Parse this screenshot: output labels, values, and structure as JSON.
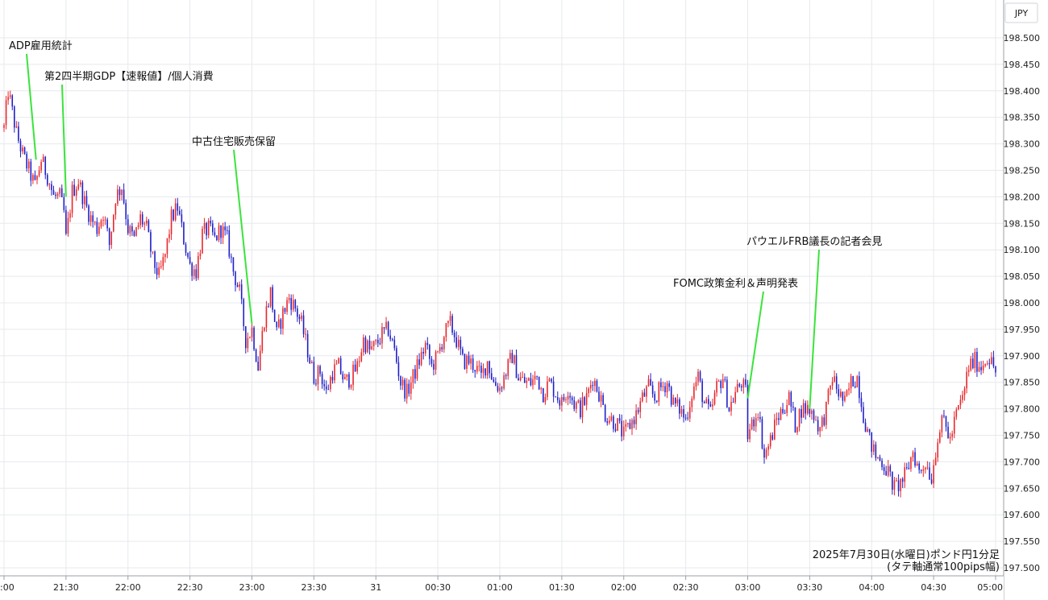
{
  "chart_data": {
    "type": "candlestick",
    "currency_label": "JPY",
    "note_lines": [
      "2025年7月30日(水曜日)ポンド円1分足",
      "(タテ軸通常100pips幅)"
    ],
    "ylim": [
      197.5,
      198.5
    ],
    "y_ticks": [
      "198.500",
      "198.450",
      "198.400",
      "198.350",
      "198.300",
      "198.250",
      "198.200",
      "198.150",
      "198.100",
      "198.050",
      "198.000",
      "197.950",
      "197.900",
      "197.850",
      "197.800",
      "197.750",
      "197.700",
      "197.650",
      "197.600",
      "197.550",
      "197.500"
    ],
    "x_ticks": [
      {
        "t": 0,
        "label": ":00"
      },
      {
        "t": 30,
        "label": "21:30"
      },
      {
        "t": 60,
        "label": "22:00"
      },
      {
        "t": 90,
        "label": "22:30"
      },
      {
        "t": 120,
        "label": "23:00"
      },
      {
        "t": 150,
        "label": "23:30"
      },
      {
        "t": 180,
        "label": "31"
      },
      {
        "t": 210,
        "label": "00:30"
      },
      {
        "t": 240,
        "label": "01:00"
      },
      {
        "t": 270,
        "label": "01:30"
      },
      {
        "t": 300,
        "label": "02:00"
      },
      {
        "t": 330,
        "label": "02:30"
      },
      {
        "t": 360,
        "label": "03:00"
      },
      {
        "t": 390,
        "label": "03:30"
      },
      {
        "t": 420,
        "label": "04:00"
      },
      {
        "t": 450,
        "label": "04:30"
      },
      {
        "t": 480,
        "label": "05:00"
      }
    ],
    "price_path": [
      [
        0,
        198.33
      ],
      [
        2,
        198.4
      ],
      [
        4,
        198.36
      ],
      [
        6,
        198.32
      ],
      [
        9,
        198.28
      ],
      [
        12,
        198.25
      ],
      [
        15,
        198.22
      ],
      [
        18,
        198.27
      ],
      [
        21,
        198.24
      ],
      [
        24,
        198.2
      ],
      [
        27,
        198.2
      ],
      [
        29,
        198.17
      ],
      [
        30,
        198.12
      ],
      [
        33,
        198.21
      ],
      [
        36,
        198.23
      ],
      [
        39,
        198.19
      ],
      [
        42,
        198.16
      ],
      [
        45,
        198.14
      ],
      [
        48,
        198.17
      ],
      [
        51,
        198.11
      ],
      [
        54,
        198.2
      ],
      [
        57,
        198.22
      ],
      [
        60,
        198.14
      ],
      [
        63,
        198.12
      ],
      [
        66,
        198.16
      ],
      [
        69,
        198.14
      ],
      [
        72,
        198.08
      ],
      [
        75,
        198.05
      ],
      [
        78,
        198.09
      ],
      [
        81,
        198.16
      ],
      [
        84,
        198.18
      ],
      [
        87,
        198.12
      ],
      [
        90,
        198.07
      ],
      [
        93,
        198.06
      ],
      [
        96,
        198.13
      ],
      [
        99,
        198.14
      ],
      [
        102,
        198.12
      ],
      [
        105,
        198.14
      ],
      [
        108,
        198.12
      ],
      [
        111,
        198.06
      ],
      [
        114,
        198.02
      ],
      [
        117,
        197.93
      ],
      [
        120,
        197.95
      ],
      [
        123,
        197.88
      ],
      [
        126,
        197.97
      ],
      [
        129,
        198.02
      ],
      [
        132,
        197.94
      ],
      [
        135,
        197.98
      ],
      [
        138,
        198.01
      ],
      [
        141,
        197.99
      ],
      [
        144,
        197.96
      ],
      [
        147,
        197.91
      ],
      [
        150,
        197.86
      ],
      [
        153,
        197.87
      ],
      [
        156,
        197.83
      ],
      [
        159,
        197.87
      ],
      [
        162,
        197.88
      ],
      [
        165,
        197.85
      ],
      [
        168,
        197.86
      ],
      [
        171,
        197.88
      ],
      [
        174,
        197.93
      ],
      [
        177,
        197.91
      ],
      [
        180,
        197.92
      ],
      [
        183,
        197.94
      ],
      [
        186,
        197.95
      ],
      [
        189,
        197.91
      ],
      [
        192,
        197.85
      ],
      [
        195,
        197.83
      ],
      [
        198,
        197.86
      ],
      [
        201,
        197.89
      ],
      [
        204,
        197.92
      ],
      [
        207,
        197.88
      ],
      [
        210,
        197.9
      ],
      [
        213,
        197.94
      ],
      [
        216,
        197.96
      ],
      [
        219,
        197.93
      ],
      [
        222,
        197.89
      ],
      [
        225,
        197.89
      ],
      [
        228,
        197.88
      ],
      [
        231,
        197.86
      ],
      [
        234,
        197.89
      ],
      [
        237,
        197.85
      ],
      [
        240,
        197.84
      ],
      [
        243,
        197.87
      ],
      [
        246,
        197.9
      ],
      [
        249,
        197.86
      ],
      [
        252,
        197.85
      ],
      [
        255,
        197.85
      ],
      [
        258,
        197.86
      ],
      [
        261,
        197.83
      ],
      [
        264,
        197.85
      ],
      [
        267,
        197.83
      ],
      [
        270,
        197.81
      ],
      [
        273,
        197.84
      ],
      [
        276,
        197.81
      ],
      [
        279,
        197.8
      ],
      [
        282,
        197.82
      ],
      [
        285,
        197.86
      ],
      [
        288,
        197.83
      ],
      [
        291,
        197.79
      ],
      [
        294,
        197.78
      ],
      [
        297,
        197.77
      ],
      [
        300,
        197.75
      ],
      [
        303,
        197.77
      ],
      [
        306,
        197.79
      ],
      [
        309,
        197.82
      ],
      [
        312,
        197.84
      ],
      [
        315,
        197.82
      ],
      [
        318,
        197.84
      ],
      [
        321,
        197.85
      ],
      [
        324,
        197.81
      ],
      [
        327,
        197.8
      ],
      [
        330,
        197.78
      ],
      [
        333,
        197.83
      ],
      [
        336,
        197.86
      ],
      [
        339,
        197.81
      ],
      [
        342,
        197.79
      ],
      [
        345,
        197.84
      ],
      [
        348,
        197.86
      ],
      [
        351,
        197.8
      ],
      [
        354,
        197.83
      ],
      [
        357,
        197.85
      ],
      [
        359,
        197.83
      ],
      [
        360,
        197.75
      ],
      [
        362,
        197.77
      ],
      [
        365,
        197.8
      ],
      [
        368,
        197.71
      ],
      [
        371,
        197.74
      ],
      [
        374,
        197.78
      ],
      [
        377,
        197.8
      ],
      [
        380,
        197.82
      ],
      [
        383,
        197.77
      ],
      [
        386,
        197.8
      ],
      [
        389,
        197.8
      ],
      [
        392,
        197.79
      ],
      [
        395,
        197.76
      ],
      [
        398,
        197.8
      ],
      [
        401,
        197.86
      ],
      [
        404,
        197.83
      ],
      [
        407,
        197.81
      ],
      [
        410,
        197.85
      ],
      [
        413,
        197.86
      ],
      [
        416,
        197.79
      ],
      [
        419,
        197.74
      ],
      [
        422,
        197.71
      ],
      [
        425,
        197.7
      ],
      [
        428,
        197.68
      ],
      [
        431,
        197.65
      ],
      [
        434,
        197.66
      ],
      [
        437,
        197.68
      ],
      [
        440,
        197.72
      ],
      [
        443,
        197.68
      ],
      [
        446,
        197.7
      ],
      [
        449,
        197.67
      ],
      [
        452,
        197.75
      ],
      [
        455,
        197.78
      ],
      [
        458,
        197.74
      ],
      [
        461,
        197.79
      ],
      [
        464,
        197.82
      ],
      [
        467,
        197.88
      ],
      [
        470,
        197.89
      ],
      [
        473,
        197.88
      ],
      [
        476,
        197.9
      ],
      [
        479,
        197.88
      ],
      [
        480,
        197.87
      ]
    ],
    "annotations": [
      {
        "label": "ADP雇用統計",
        "t": 15.5,
        "price": 198.27
      },
      {
        "label": "第2四半期GDP【速報値】/個人消費",
        "t": 30,
        "price": 198.2
      },
      {
        "label": "中古住宅販売保留",
        "t": 120,
        "price": 197.96
      },
      {
        "label": "FOMC政策金利＆声明発表",
        "t": 360,
        "price": 197.82
      },
      {
        "label": "パウエルFRB議長の記者会見",
        "t": 390,
        "price": 197.8
      }
    ],
    "colors": {
      "up": "#e8262b",
      "down": "#1f1fc8",
      "grid": "#e6e9ee",
      "annotation_line": "#3be33b",
      "axis": "#9aa0a8"
    }
  }
}
